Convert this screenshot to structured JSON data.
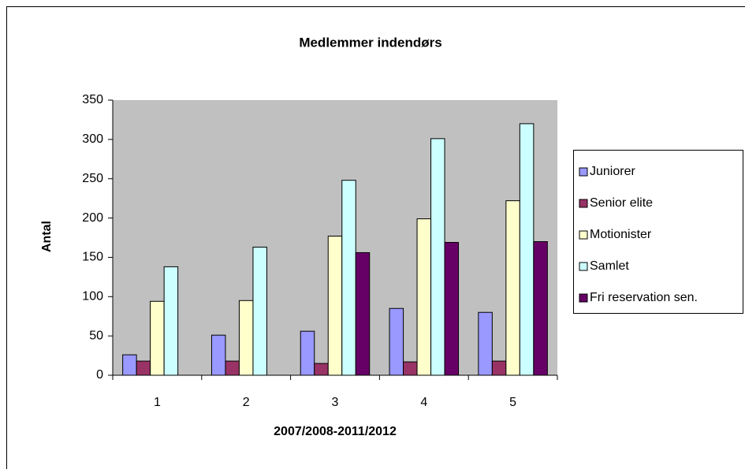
{
  "chart_data": {
    "type": "bar",
    "title": "Medlemmer indendørs",
    "x_label": "2007/2008-2011/2012",
    "y_label": "Antal",
    "categories": [
      "1",
      "2",
      "3",
      "4",
      "5"
    ],
    "series": [
      {
        "name": "Juniorer",
        "color": "#9999ff",
        "values": [
          26,
          51,
          56,
          85,
          80
        ]
      },
      {
        "name": "Senior elite",
        "color": "#993366",
        "values": [
          18,
          18,
          15,
          17,
          18
        ]
      },
      {
        "name": "Motionister",
        "color": "#ffffcc",
        "values": [
          94,
          95,
          177,
          199,
          222
        ]
      },
      {
        "name": "Samlet",
        "color": "#ccffff",
        "values": [
          138,
          163,
          248,
          301,
          320
        ]
      },
      {
        "name": "Fri reservation sen.",
        "color": "#660066",
        "values": [
          null,
          null,
          156,
          169,
          170
        ]
      }
    ],
    "ylim": [
      0,
      350
    ],
    "yticks": [
      0,
      50,
      100,
      150,
      200,
      250,
      300,
      350
    ],
    "grid": false,
    "legend": "right"
  }
}
